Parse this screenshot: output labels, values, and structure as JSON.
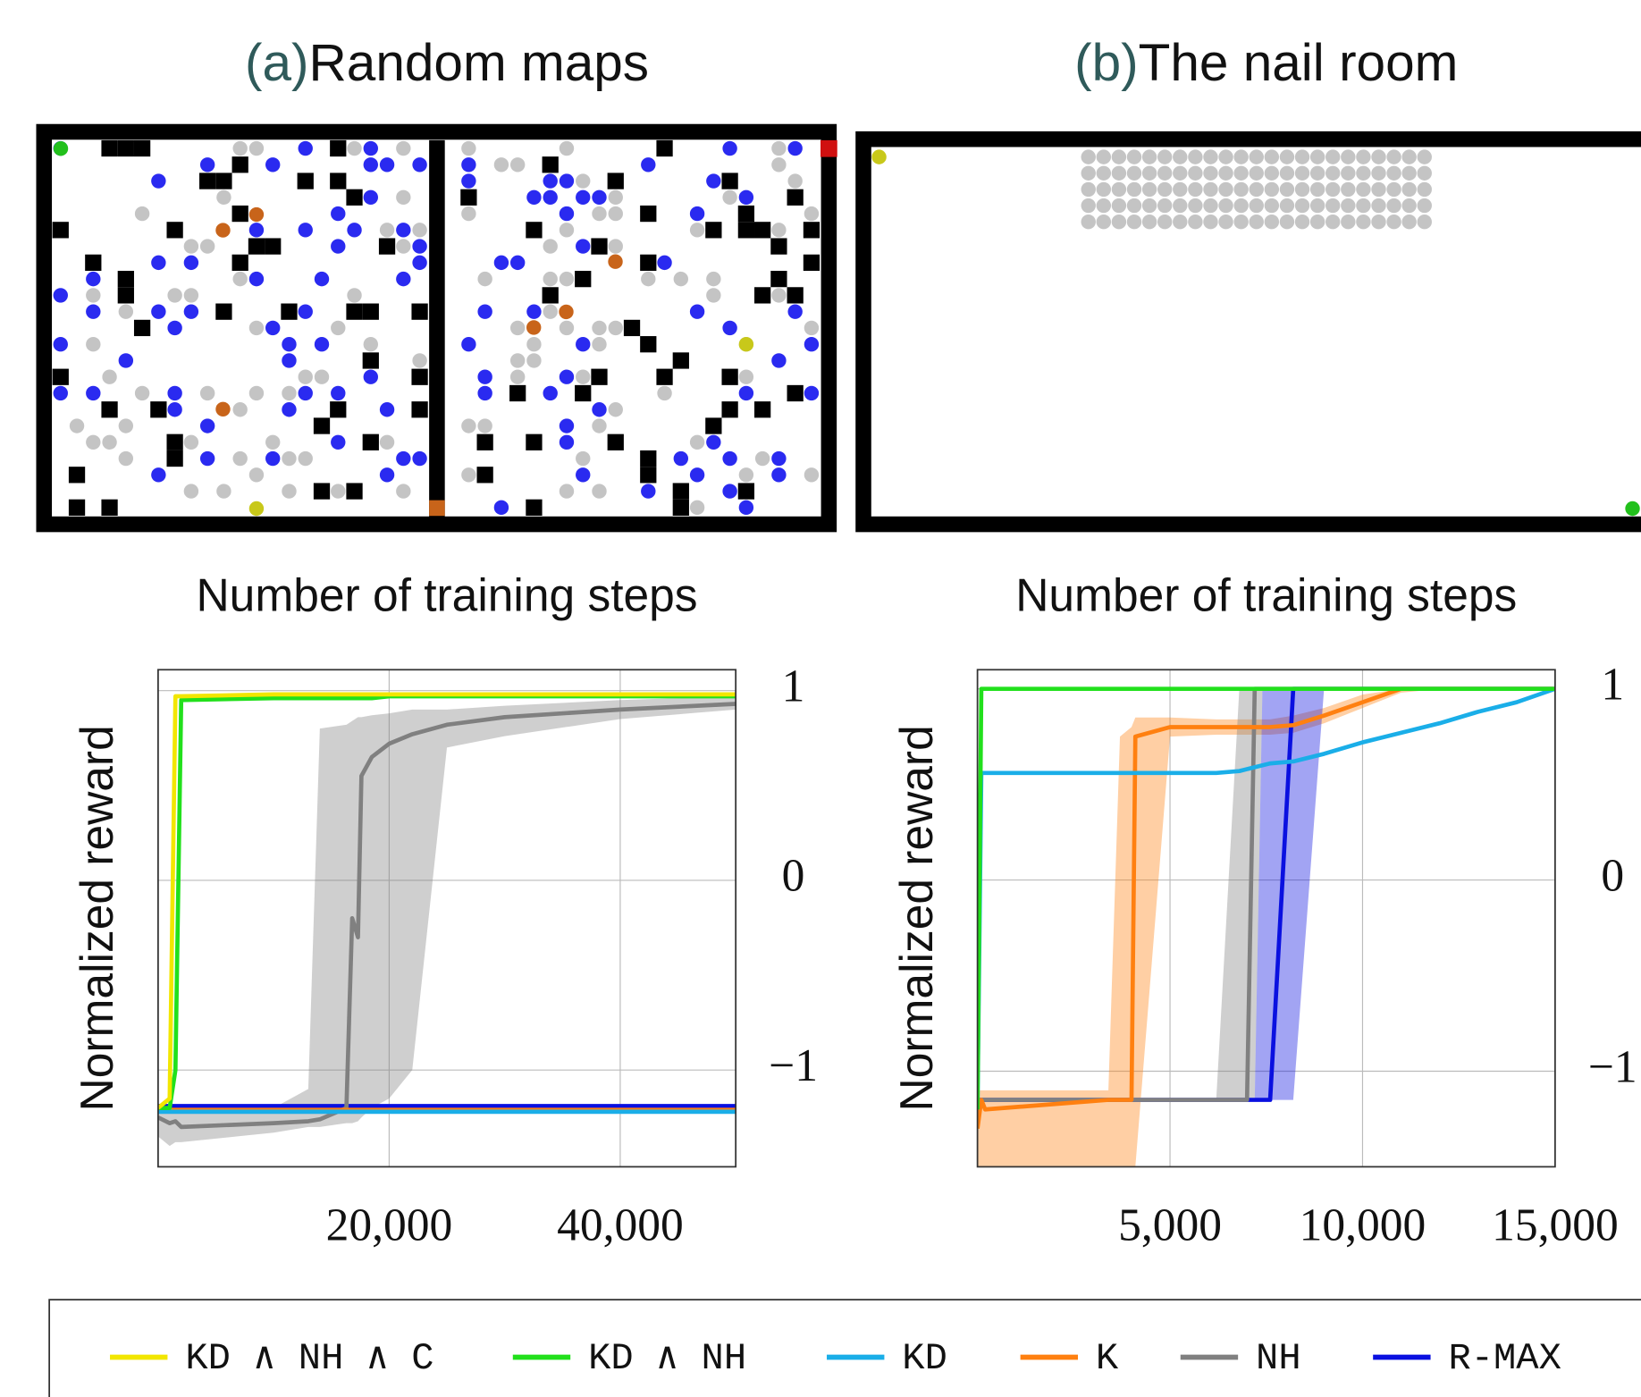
{
  "chart_data": [
    {
      "type": "line",
      "panel_label": "(a)",
      "title": "Random maps",
      "x_label": "Number of training steps",
      "y_label": "Normalized reward",
      "x": [
        0,
        1000,
        1500,
        2000,
        10000,
        13000,
        14000,
        16300,
        16800,
        17300,
        17600,
        18500,
        20000,
        22000,
        25000,
        30000,
        40000,
        50000
      ],
      "xlim": [
        0,
        50000
      ],
      "xticks": [
        {
          "value": 20000,
          "label": "20,000"
        },
        {
          "value": 40000,
          "label": "40,000"
        }
      ],
      "ylim": [
        -1.51,
        1.11
      ],
      "yticks": [
        {
          "value": -1,
          "label": "−1"
        },
        0,
        1
      ],
      "grid": true,
      "series": [
        {
          "name": "KD ∧ NH ∧ C",
          "color": "#f2e600",
          "values": [
            -1.2,
            -1.15,
            0.97,
            0.97,
            0.98,
            0.98,
            0.98,
            0.98,
            0.98,
            0.98,
            0.98,
            0.98,
            0.98,
            0.98,
            0.98,
            0.98,
            0.98,
            0.98
          ]
        },
        {
          "name": "KD ∧ NH",
          "color": "#22e01c",
          "values": [
            -1.2,
            -1.2,
            -1.0,
            0.95,
            0.96,
            0.96,
            0.96,
            0.96,
            0.96,
            0.96,
            0.96,
            0.96,
            0.97,
            0.97,
            0.97,
            0.97,
            0.97,
            0.97
          ]
        },
        {
          "name": "KD",
          "color": "#1aaee8",
          "values": [
            -1.22,
            -1.22,
            -1.22,
            -1.22,
            -1.22,
            -1.22,
            -1.22,
            -1.22,
            -1.22,
            -1.22,
            -1.22,
            -1.22,
            -1.22,
            -1.22,
            -1.22,
            -1.22,
            -1.22,
            -1.22
          ]
        },
        {
          "name": "K",
          "color": "#ff8010",
          "values": [
            -1.21,
            -1.21,
            -1.21,
            -1.21,
            -1.21,
            -1.21,
            -1.21,
            -1.21,
            -1.21,
            -1.21,
            -1.21,
            -1.21,
            -1.21,
            -1.21,
            -1.21,
            -1.21,
            -1.21,
            -1.21
          ]
        },
        {
          "name": "NH",
          "color": "#808080",
          "values": [
            -1.25,
            -1.28,
            -1.27,
            -1.3,
            -1.28,
            -1.27,
            -1.26,
            -1.2,
            -0.2,
            -0.3,
            0.55,
            0.65,
            0.72,
            0.77,
            0.82,
            0.86,
            0.9,
            0.93
          ],
          "lower": [
            -1.35,
            -1.4,
            -1.38,
            -1.38,
            -1.33,
            -1.3,
            -1.3,
            -1.28,
            -1.28,
            -1.27,
            -1.25,
            -1.2,
            -1.15,
            -1.0,
            0.7,
            0.76,
            0.85,
            0.9
          ],
          "upper": [
            -1.2,
            -1.2,
            -1.2,
            -1.2,
            -1.2,
            -1.1,
            0.8,
            0.82,
            0.84,
            0.86,
            0.86,
            0.87,
            0.88,
            0.9,
            0.9,
            0.92,
            0.95,
            0.97
          ]
        },
        {
          "name": "R-MAX",
          "color": "#0a10e0",
          "values": [
            -1.19,
            -1.19,
            -1.19,
            -1.19,
            -1.19,
            -1.19,
            -1.19,
            -1.19,
            -1.19,
            -1.19,
            -1.19,
            -1.19,
            -1.19,
            -1.19,
            -1.19,
            -1.19,
            -1.19,
            -1.19
          ]
        }
      ]
    },
    {
      "type": "line",
      "panel_label": "(b)",
      "title": "The nail room",
      "x_label": "Number of training steps",
      "y_label": "Normalized reward",
      "x": [
        0,
        100,
        200,
        3400,
        3700,
        4000,
        4100,
        5000,
        6200,
        6800,
        7000,
        7200,
        7400,
        7600,
        8200,
        9000,
        10000,
        11000,
        12000,
        13000,
        14000,
        15000
      ],
      "xlim": [
        0,
        15000
      ],
      "xticks": [
        {
          "value": 5000,
          "label": "5,000"
        },
        {
          "value": 10000,
          "label": "10,000"
        },
        {
          "value": 15000,
          "label": "15,000"
        }
      ],
      "ylim": [
        -1.5,
        1.1
      ],
      "yticks": [
        {
          "value": -1,
          "label": "−1"
        },
        0,
        1
      ],
      "grid": true,
      "series": [
        {
          "color": "#f2e600",
          "values": [
            null,
            null,
            null,
            null,
            null,
            null,
            null,
            null,
            null,
            null,
            null,
            null,
            null,
            null,
            null,
            null,
            null,
            null,
            null,
            null,
            null,
            null
          ]
        },
        {
          "color": "#22e01c",
          "values": [
            -1.2,
            1,
            1,
            1,
            1,
            1,
            1,
            1,
            1,
            1,
            1,
            1,
            1,
            1,
            1,
            1,
            1,
            1,
            1,
            1,
            1,
            1
          ]
        },
        {
          "color": "#1aaee8",
          "values": [
            -1.2,
            0.56,
            0.56,
            0.56,
            0.56,
            0.56,
            0.56,
            0.56,
            0.56,
            0.57,
            0.58,
            0.59,
            0.6,
            0.61,
            0.62,
            0.66,
            0.72,
            0.77,
            0.82,
            0.88,
            0.93,
            1.0
          ]
        },
        {
          "color": "#ff8010",
          "values": [
            -1.3,
            -1.15,
            -1.2,
            -1.15,
            -1.15,
            -1.15,
            0.75,
            0.8,
            0.8,
            0.8,
            0.8,
            0.8,
            0.8,
            0.8,
            0.81,
            0.86,
            0.93,
            1,
            1,
            1,
            1,
            1
          ],
          "lower": [
            -1.5,
            -1.5,
            -1.5,
            -1.5,
            -1.5,
            -1.5,
            -1.5,
            0.75,
            0.76,
            0.76,
            0.76,
            0.76,
            0.76,
            0.76,
            0.77,
            0.82,
            0.9,
            0.98,
            1,
            1,
            1,
            1
          ],
          "upper": [
            -1.1,
            -1.1,
            -1.1,
            -1.1,
            0.75,
            0.8,
            0.85,
            0.85,
            0.84,
            0.84,
            0.84,
            0.84,
            0.84,
            0.84,
            0.86,
            0.9,
            0.97,
            1,
            1,
            1,
            1,
            1
          ]
        },
        {
          "color": "#808080",
          "values": [
            -1.15,
            -1.15,
            -1.15,
            -1.15,
            -1.15,
            -1.15,
            -1.15,
            -1.15,
            -1.15,
            -1.15,
            -1.15,
            1,
            1,
            1,
            1,
            1,
            1,
            1,
            1,
            1,
            1,
            1
          ],
          "lower": [
            -1.15,
            -1.15,
            -1.15,
            -1.15,
            -1.15,
            -1.15,
            -1.15,
            -1.15,
            -1.15,
            -1.15,
            -1.15,
            -1.15,
            1,
            1,
            1,
            1,
            1,
            1,
            1,
            1,
            1,
            1
          ],
          "upper": [
            -1.15,
            -1.15,
            -1.15,
            -1.15,
            -1.15,
            -1.15,
            -1.15,
            -1.15,
            -1.15,
            1,
            1,
            1,
            1,
            1,
            1,
            1,
            1,
            1,
            1,
            1,
            1,
            1
          ]
        },
        {
          "color": "#0a10e0",
          "values": [
            -1.15,
            -1.15,
            -1.15,
            -1.15,
            -1.15,
            -1.15,
            -1.15,
            -1.15,
            -1.15,
            -1.15,
            -1.15,
            -1.15,
            -1.15,
            -1.15,
            1,
            1,
            1,
            1,
            1,
            1,
            1,
            1
          ],
          "lower": [
            -1.15,
            -1.15,
            -1.15,
            -1.15,
            -1.15,
            -1.15,
            -1.15,
            -1.15,
            -1.15,
            -1.15,
            -1.15,
            -1.15,
            -1.15,
            -1.15,
            -1.15,
            1,
            1,
            1,
            1,
            1,
            1,
            1
          ],
          "upper": [
            -1.15,
            -1.15,
            -1.15,
            -1.15,
            -1.15,
            -1.15,
            -1.15,
            -1.15,
            -1.15,
            -1.15,
            -1.15,
            -1.15,
            1,
            1,
            1,
            1,
            1,
            1,
            1,
            1,
            1,
            1
          ]
        }
      ]
    }
  ]
}
